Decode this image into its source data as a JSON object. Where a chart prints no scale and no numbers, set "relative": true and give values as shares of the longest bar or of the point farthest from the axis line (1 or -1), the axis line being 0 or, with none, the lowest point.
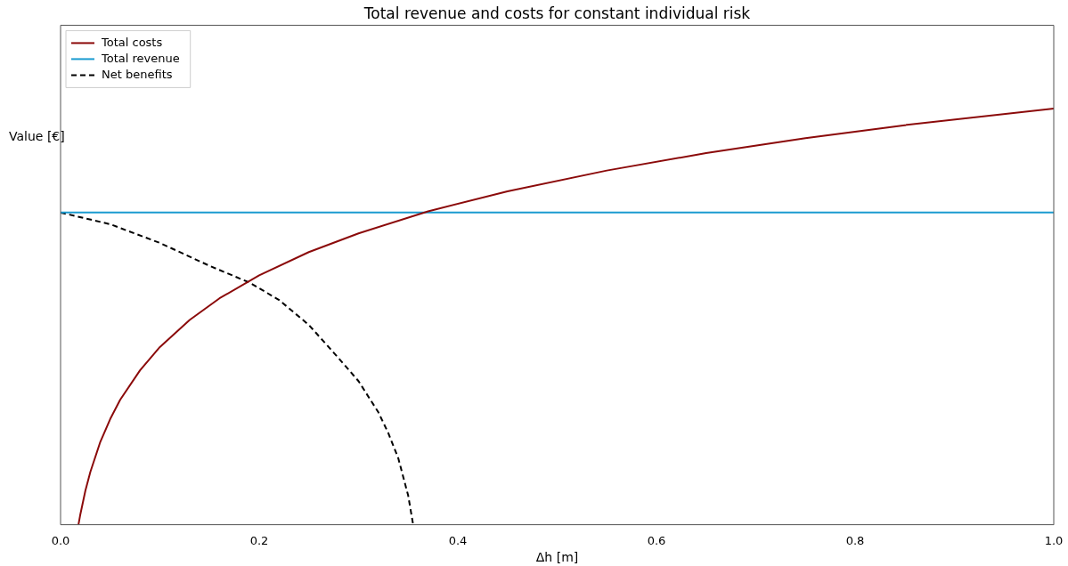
{
  "chart_data": {
    "type": "line",
    "title": "Total revenue and costs for constant individual risk",
    "xlabel": "Δh [m]",
    "ylabel": "Value [€]",
    "relative": true,
    "xlim": [
      0,
      1
    ],
    "xticks": [
      {
        "value": 0,
        "label": "0.0"
      },
      0.2,
      0.4,
      0.6,
      0.8,
      {
        "value": 1,
        "label": "1.0"
      }
    ],
    "grid": false,
    "legend": "top left",
    "marker": "none",
    "series": [
      {
        "name": "Total costs",
        "color": "#8b0a0a",
        "x": [
          0.018,
          0.02,
          0.025,
          0.03,
          0.04,
          0.05,
          0.06,
          0.08,
          0.1,
          0.13,
          0.16,
          0.2,
          0.25,
          0.3,
          0.37,
          0.45,
          0.55,
          0.65,
          0.75,
          0.85,
          1.0
        ],
        "values": [
          0,
          0.026,
          0.082,
          0.127,
          0.199,
          0.254,
          0.3,
          0.371,
          0.427,
          0.492,
          0.544,
          0.599,
          0.655,
          0.7,
          0.753,
          0.801,
          0.851,
          0.893,
          0.929,
          0.96,
          1.0
        ]
      },
      {
        "name": "Total revenue",
        "color": "#1a9bd0",
        "x": [
          0,
          1
        ],
        "values": [
          0.75,
          0.75
        ]
      },
      {
        "name": "Net benefits",
        "color": "#000000",
        "line_style": "dashed",
        "x": [
          0,
          0.05,
          0.1,
          0.15,
          0.19,
          0.22,
          0.25,
          0.28,
          0.3,
          0.32,
          0.33,
          0.34,
          0.35,
          0.355
        ],
        "values": [
          0.75,
          0.722,
          0.677,
          0.622,
          0.582,
          0.54,
          0.48,
          0.4,
          0.345,
          0.27,
          0.22,
          0.16,
          0.07,
          0
        ]
      }
    ]
  }
}
